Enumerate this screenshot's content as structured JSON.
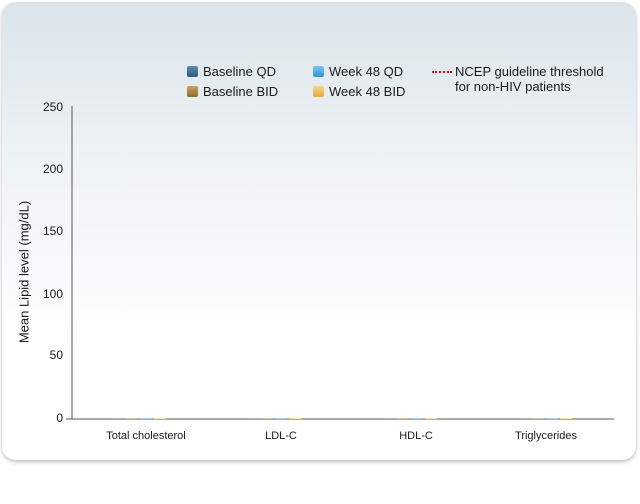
{
  "chart_data": {
    "type": "bar",
    "title": "",
    "xlabel": "",
    "ylabel": "Mean Lipid level (mg/dL)",
    "ylim": [
      0,
      250
    ],
    "yticks": [
      "0",
      "50",
      "100",
      "150",
      "200",
      "250"
    ],
    "categories": [
      "Total cholesterol",
      "LDL-C",
      "HDL-C",
      "Triglycerides"
    ],
    "series": [
      {
        "name": "Baseline QD",
        "color": "#3f6f93",
        "values": [
          0,
          0,
          0,
          0
        ]
      },
      {
        "name": "Baseline BID",
        "color": "#b08a3a",
        "values": [
          0,
          0,
          0,
          0
        ]
      },
      {
        "name": "Week 48 QD",
        "color": "#49a9e0",
        "values": [
          0,
          0,
          0,
          0
        ]
      },
      {
        "name": "Week 48 BID",
        "color": "#f0c060",
        "values": [
          0,
          0,
          0,
          0
        ]
      }
    ],
    "threshold": {
      "name_line1": "NCEP guideline threshold",
      "name_line2": "for non-HIV patients",
      "color": "#d01010"
    },
    "legend_position": "top",
    "grid": false
  }
}
